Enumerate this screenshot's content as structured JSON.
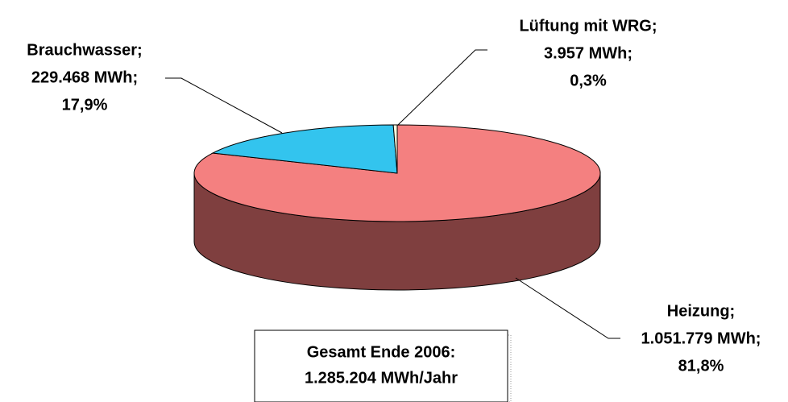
{
  "chart_data": {
    "type": "pie",
    "categories": [
      "Heizung;",
      "Brauchwasser;",
      "Lüftung mit WRG;"
    ],
    "values": [
      1051779,
      229468,
      3957
    ],
    "value_labels": [
      "1.051.779 MWh;",
      "229.468 MWh;",
      "3.957 MWh;"
    ],
    "percents": [
      81.8,
      17.9,
      0.3
    ],
    "percent_labels": [
      "81,8%",
      "17,9%",
      "0,3%"
    ],
    "colors": [
      "#f48080",
      "#33c4ee",
      "#ffffe0"
    ],
    "side_colors": [
      "#7f3f3f",
      "#1a7fa0",
      "#b0b090"
    ],
    "annotation": [
      "Gesamt Ende 2006:",
      "1.285.204 MWh/Jahr"
    ]
  }
}
